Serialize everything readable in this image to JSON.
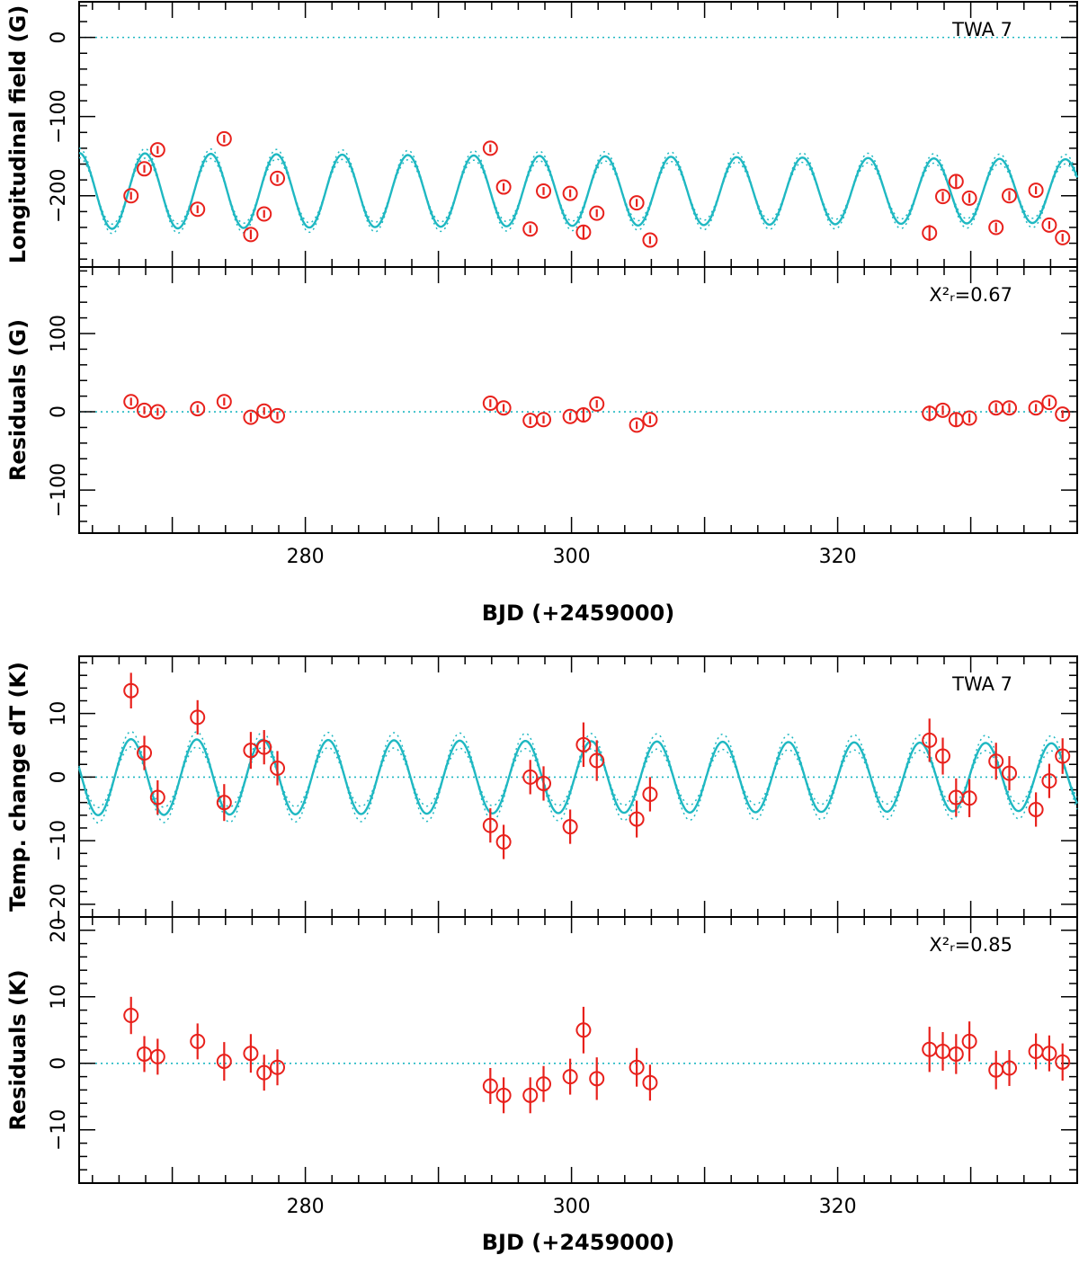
{
  "chart_data": [
    {
      "type": "scatter",
      "title": "",
      "annotation": "TWA 7",
      "xlabel": "",
      "ylabel": "Longitudinal field (G)",
      "xlim": [
        263,
        338
      ],
      "ylim": [
        -290,
        45
      ],
      "yticks": [
        0,
        -100,
        -200
      ],
      "xticks": [
        280,
        300,
        320
      ],
      "show_x_tick_labels": false,
      "reference_line": 0,
      "model": {
        "mean": -194,
        "amplitude": 48,
        "amplitude_end": 40,
        "period": 4.94,
        "phase_time": 267.95,
        "band": 6
      },
      "points": {
        "x": [
          266.9,
          267.9,
          268.9,
          271.9,
          273.9,
          275.9,
          276.9,
          277.9,
          293.9,
          294.9,
          296.9,
          297.9,
          299.9,
          300.9,
          301.9,
          304.9,
          305.9,
          326.9,
          327.9,
          328.9,
          329.9,
          331.9,
          332.9,
          334.9,
          335.9,
          336.9
        ],
        "y": [
          -200,
          -166,
          -142,
          -217,
          -128,
          -249,
          -223,
          -178,
          -140,
          -189,
          -242,
          -194,
          -197,
          -246,
          -222,
          -209,
          -256,
          -247,
          -201,
          -182,
          -203,
          -240,
          -200,
          -193,
          -237,
          -253
        ],
        "err": [
          5,
          5,
          5,
          5,
          5,
          6,
          5,
          5,
          5,
          5,
          5,
          5,
          5,
          8,
          5,
          5,
          5,
          10,
          6,
          8,
          6,
          6,
          6,
          5,
          5,
          5
        ]
      }
    },
    {
      "type": "scatter",
      "title": "",
      "annotation": "X²ᵣ=0.67",
      "xlabel": "BJD (+2459000)",
      "ylabel": "Residuals (G)",
      "xlim": [
        263,
        338
      ],
      "ylim": [
        -155,
        185
      ],
      "yticks": [
        100,
        0,
        -100
      ],
      "xticks": [
        280,
        300,
        320
      ],
      "show_x_tick_labels": true,
      "reference_line": 0,
      "points": {
        "x": [
          266.9,
          267.9,
          268.9,
          271.9,
          273.9,
          275.9,
          276.9,
          277.9,
          293.9,
          294.9,
          296.9,
          297.9,
          299.9,
          300.9,
          301.9,
          304.9,
          305.9,
          326.9,
          327.9,
          328.9,
          329.9,
          331.9,
          332.9,
          334.9,
          335.9,
          336.9
        ],
        "y": [
          13,
          2,
          0,
          4,
          13,
          -7,
          1,
          -5,
          11,
          5,
          -11,
          -10,
          -6,
          -4,
          10,
          -17,
          -10,
          -2,
          2,
          -10,
          -8,
          5,
          5,
          5,
          12,
          -3
        ],
        "err": [
          5,
          5,
          5,
          5,
          5,
          6,
          5,
          5,
          5,
          5,
          5,
          5,
          5,
          8,
          5,
          5,
          5,
          10,
          6,
          8,
          6,
          6,
          6,
          5,
          5,
          5
        ]
      }
    },
    {
      "type": "scatter",
      "title": "",
      "annotation": "TWA 7",
      "xlabel": "",
      "ylabel": "Temp. change dT (K)",
      "xlim": [
        263,
        338
      ],
      "ylim": [
        -22,
        19
      ],
      "yticks": [
        10,
        0,
        -10,
        -20
      ],
      "xticks": [
        280,
        300,
        320
      ],
      "show_x_tick_labels": false,
      "reference_line": 0,
      "model": {
        "mean": 0,
        "amplitude": 6,
        "amplitude_end": 5.3,
        "period": 4.94,
        "phase_time": 266.9,
        "band": 1.2
      },
      "points": {
        "x": [
          266.9,
          267.9,
          268.9,
          271.9,
          273.9,
          275.9,
          276.9,
          277.9,
          293.9,
          294.9,
          296.9,
          297.9,
          299.9,
          300.9,
          301.9,
          304.9,
          305.9,
          326.9,
          327.9,
          328.9,
          329.9,
          331.9,
          332.9,
          334.9,
          335.9,
          336.9
        ],
        "y": [
          13.6,
          3.8,
          -3.2,
          9.4,
          -4,
          4.2,
          4.7,
          1.4,
          -7.6,
          -10.2,
          0,
          -1,
          -7.8,
          5.1,
          2.6,
          -6.6,
          -2.7,
          5.8,
          3.3,
          -3.2,
          -3.3,
          2.5,
          0.6,
          -5.1,
          -0.6,
          3.3
        ],
        "err": [
          2.8,
          2.7,
          2.7,
          2.7,
          2.9,
          2.9,
          2.7,
          2.7,
          2.7,
          2.7,
          2.7,
          2.7,
          2.7,
          3.5,
          3.2,
          2.9,
          2.7,
          3.4,
          2.9,
          3,
          3,
          2.9,
          2.7,
          2.7,
          2.7,
          2.8
        ]
      }
    },
    {
      "type": "scatter",
      "title": "",
      "annotation": "X²ᵣ=0.85",
      "xlabel": "BJD (+2459000)",
      "ylabel": "Residuals (K)",
      "xlim": [
        263,
        338
      ],
      "ylim": [
        -18,
        22
      ],
      "yticks": [
        20,
        10,
        0,
        -10
      ],
      "xticks": [
        280,
        300,
        320
      ],
      "show_x_tick_labels": true,
      "reference_line": 0,
      "points": {
        "x": [
          266.9,
          267.9,
          268.9,
          271.9,
          273.9,
          275.9,
          276.9,
          277.9,
          293.9,
          294.9,
          296.9,
          297.9,
          299.9,
          300.9,
          301.9,
          304.9,
          305.9,
          326.9,
          327.9,
          328.9,
          329.9,
          331.9,
          332.9,
          334.9,
          335.9,
          336.9
        ],
        "y": [
          7.2,
          1.4,
          1,
          3.3,
          0.3,
          1.5,
          -1.4,
          -0.6,
          -3.4,
          -4.8,
          -4.8,
          -3.1,
          -2,
          5,
          -2.3,
          -0.6,
          -2.9,
          2.1,
          1.8,
          1.4,
          3.3,
          -1,
          -0.7,
          1.8,
          1.5,
          0.2
        ],
        "err": [
          2.8,
          2.7,
          2.7,
          2.7,
          2.9,
          2.9,
          2.7,
          2.7,
          2.7,
          2.7,
          2.7,
          2.7,
          2.7,
          3.5,
          3.2,
          2.9,
          2.7,
          3.4,
          2.9,
          3,
          3,
          2.9,
          2.7,
          2.7,
          2.7,
          2.8
        ]
      }
    }
  ]
}
